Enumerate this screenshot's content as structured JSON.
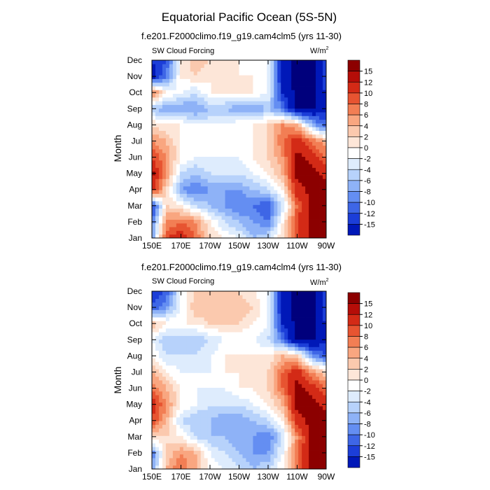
{
  "title": "Equatorial Pacific Ocean (5S-5N)",
  "colors": {
    "levels": [
      "#00007c",
      "#0018b8",
      "#1c3ed8",
      "#3e66e6",
      "#648ef2",
      "#8eb2f7",
      "#b7d2fb",
      "#deecfd",
      "#ffffff",
      "#fde6d8",
      "#fbc9ae",
      "#f9a680",
      "#f27e54",
      "#e75431",
      "#d32a16",
      "#b50d08",
      "#8c0000"
    ]
  },
  "chart_data": [
    {
      "type": "heatmap",
      "title": "f.e201.F2000climo.f19_g19.cam4clm5 (yrs 11-30)",
      "left_label": "SW Cloud Forcing",
      "units_base": "W/m",
      "units_exp": "2",
      "ylabel": "Month",
      "x_ticks": [
        "150E",
        "170E",
        "170W",
        "150W",
        "130W",
        "110W",
        "90W"
      ],
      "y_ticks": [
        "Jan",
        "Feb",
        "Mar",
        "Apr",
        "May",
        "Jun",
        "Jul",
        "Aug",
        "Sep",
        "Oct",
        "Nov",
        "Dec"
      ],
      "colorbar_labels": [
        "15",
        "12",
        "10",
        "8",
        "6",
        "4",
        "2",
        "0",
        "-2",
        "-4",
        "-6",
        "-8",
        "-10",
        "-12",
        "-15"
      ],
      "longitudes": [
        150,
        160,
        170,
        180,
        190,
        200,
        210,
        220,
        230,
        240,
        250,
        260,
        270
      ],
      "values": [
        [
          -6,
          12,
          14,
          10,
          4,
          2,
          0,
          -4,
          -2,
          4,
          12,
          16,
          16
        ],
        [
          -8,
          8,
          10,
          8,
          2,
          -2,
          -4,
          -6,
          -8,
          2,
          12,
          16,
          16
        ],
        [
          -12,
          4,
          2,
          -2,
          -4,
          -6,
          -8,
          -8,
          -10,
          -2,
          10,
          16,
          16
        ],
        [
          14,
          4,
          -6,
          -8,
          -6,
          -6,
          -6,
          -4,
          -2,
          2,
          14,
          16,
          16
        ],
        [
          16,
          8,
          -2,
          -4,
          -2,
          -2,
          -2,
          0,
          2,
          6,
          16,
          16,
          14
        ],
        [
          12,
          8,
          2,
          0,
          0,
          0,
          0,
          2,
          4,
          8,
          16,
          14,
          10
        ],
        [
          8,
          6,
          2,
          2,
          2,
          0,
          0,
          2,
          4,
          10,
          14,
          10,
          6
        ],
        [
          4,
          2,
          2,
          0,
          0,
          0,
          2,
          2,
          4,
          8,
          6,
          -4,
          -10
        ],
        [
          -4,
          -6,
          -6,
          -6,
          -4,
          -4,
          -6,
          -6,
          -4,
          -8,
          -16,
          -16,
          -12
        ],
        [
          10,
          2,
          0,
          -2,
          2,
          2,
          2,
          2,
          0,
          -12,
          -16,
          -16,
          -12
        ],
        [
          -14,
          -8,
          2,
          4,
          2,
          2,
          2,
          2,
          0,
          -14,
          -16,
          -16,
          -10
        ],
        [
          -12,
          -10,
          2,
          6,
          4,
          2,
          2,
          0,
          0,
          -14,
          -16,
          -16,
          -10
        ]
      ]
    },
    {
      "type": "heatmap",
      "title": "f.e201.F2000climo.f19_g19.cam4clm4 (yrs 11-30)",
      "left_label": "SW Cloud Forcing",
      "units_base": "W/m",
      "units_exp": "2",
      "ylabel": "Month",
      "x_ticks": [
        "150E",
        "170E",
        "170W",
        "150W",
        "130W",
        "110W",
        "90W"
      ],
      "y_ticks": [
        "Jan",
        "Feb",
        "Mar",
        "Apr",
        "May",
        "Jun",
        "Jul",
        "Aug",
        "Sep",
        "Oct",
        "Nov",
        "Dec"
      ],
      "colorbar_labels": [
        "15",
        "12",
        "10",
        "8",
        "6",
        "4",
        "2",
        "0",
        "-2",
        "-4",
        "-6",
        "-8",
        "-10",
        "-12",
        "-15"
      ],
      "longitudes": [
        150,
        160,
        170,
        180,
        190,
        200,
        210,
        220,
        230,
        240,
        250,
        260,
        270
      ],
      "values": [
        [
          -6,
          6,
          10,
          6,
          2,
          0,
          -2,
          -4,
          -2,
          2,
          10,
          16,
          16
        ],
        [
          -8,
          4,
          8,
          6,
          0,
          -2,
          -4,
          -6,
          -6,
          0,
          10,
          16,
          16
        ],
        [
          4,
          4,
          2,
          -2,
          -4,
          -4,
          -6,
          -6,
          -8,
          -2,
          8,
          16,
          16
        ],
        [
          12,
          6,
          -2,
          -4,
          -4,
          -6,
          -6,
          -4,
          -2,
          2,
          14,
          16,
          16
        ],
        [
          14,
          8,
          2,
          0,
          -2,
          -2,
          -2,
          0,
          2,
          6,
          16,
          16,
          14
        ],
        [
          10,
          6,
          2,
          0,
          0,
          0,
          2,
          2,
          4,
          10,
          16,
          14,
          10
        ],
        [
          6,
          2,
          0,
          0,
          0,
          2,
          2,
          2,
          4,
          10,
          14,
          8,
          4
        ],
        [
          2,
          -2,
          -2,
          -2,
          0,
          2,
          2,
          2,
          2,
          6,
          4,
          -6,
          -10
        ],
        [
          0,
          -4,
          -4,
          -4,
          -2,
          0,
          0,
          0,
          -2,
          -8,
          -16,
          -16,
          -12
        ],
        [
          6,
          2,
          2,
          2,
          4,
          4,
          4,
          2,
          0,
          -12,
          -16,
          -16,
          -12
        ],
        [
          -10,
          -6,
          0,
          6,
          6,
          6,
          6,
          4,
          0,
          -14,
          -16,
          -16,
          -10
        ],
        [
          -12,
          -10,
          0,
          4,
          4,
          4,
          4,
          2,
          0,
          -14,
          -16,
          -16,
          -10
        ]
      ]
    }
  ]
}
